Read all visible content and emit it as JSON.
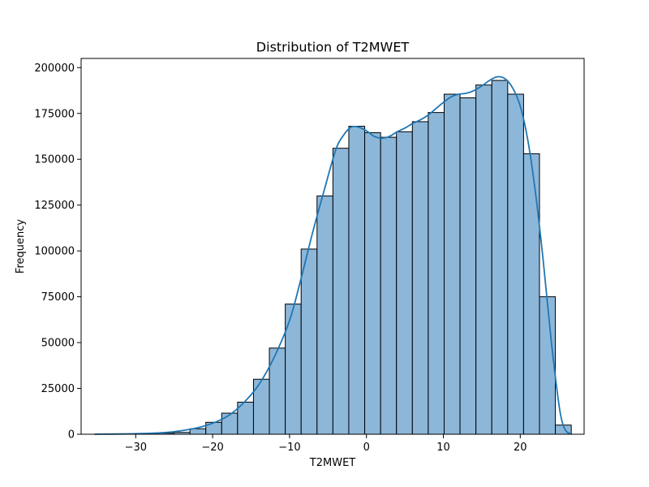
{
  "chart_data": {
    "type": "bar",
    "title": "Distribution of T2MWET",
    "xlabel": "T2MWET",
    "ylabel": "Frequency",
    "xlim": [
      -37.1,
      28.3
    ],
    "ylim": [
      0,
      205000
    ],
    "xticks": [
      -30,
      -20,
      -10,
      0,
      10,
      20
    ],
    "xtick_labels": [
      "−30",
      "−20",
      "−10",
      "0",
      "10",
      "20"
    ],
    "yticks": [
      0,
      25000,
      50000,
      75000,
      100000,
      125000,
      150000,
      175000,
      200000
    ],
    "ytick_labels": [
      "0",
      "25000",
      "50000",
      "75000",
      "100000",
      "125000",
      "150000",
      "175000",
      "200000"
    ],
    "grid": false,
    "legend": false,
    "bins": {
      "start": -35.35,
      "width": 2.066,
      "counts": [
        50,
        80,
        200,
        350,
        600,
        1000,
        3000,
        6500,
        11500,
        17500,
        30000,
        47000,
        71000,
        101000,
        130000,
        156000,
        168000,
        164500,
        162000,
        165000,
        170500,
        175500,
        185500,
        183500,
        190500,
        193000,
        185500,
        153000,
        75000,
        5000
      ]
    },
    "kde": {
      "x": [
        -35.35,
        -30,
        -26,
        -24,
        -22,
        -20,
        -18,
        -16,
        -14,
        -12,
        -10,
        -8.5,
        -7,
        -5.5,
        -4,
        -3,
        -2,
        -1,
        0,
        1,
        2,
        3,
        4,
        5,
        6,
        7,
        8,
        9,
        10,
        11,
        12,
        13,
        14,
        15,
        16,
        17,
        18,
        19,
        20,
        21,
        22,
        23,
        24,
        25,
        25.5,
        26,
        26.7
      ],
      "y": [
        0,
        300,
        1000,
        2000,
        3500,
        6000,
        10000,
        17000,
        27000,
        42000,
        62000,
        85000,
        110000,
        133000,
        155000,
        163000,
        167500,
        167500,
        165500,
        162500,
        161500,
        162500,
        165000,
        167000,
        169500,
        171500,
        174000,
        177500,
        181000,
        184000,
        185500,
        186000,
        187500,
        190000,
        193000,
        195000,
        194000,
        189000,
        179000,
        160000,
        131000,
        94000,
        52000,
        17000,
        6000,
        1500,
        0
      ]
    },
    "colors": {
      "bar_fill": "#8db7d9",
      "bar_edge": "#000000",
      "kde_line": "#1f77b4",
      "axes": "#000000"
    }
  }
}
